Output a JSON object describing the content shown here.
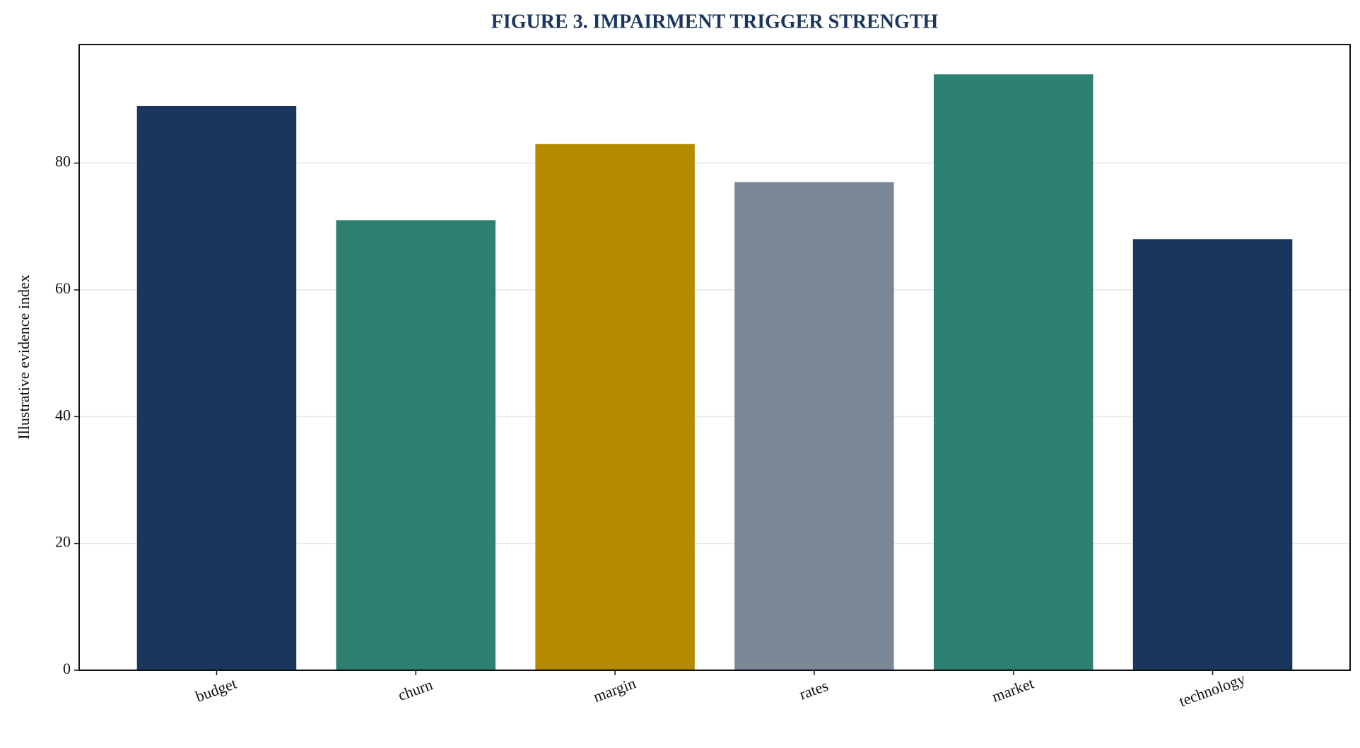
{
  "chart_data": {
    "type": "bar",
    "title": "FIGURE 3. IMPAIRMENT TRIGGER STRENGTH",
    "y_label": "Illustrative evidence index",
    "categories": [
      "budget",
      "churn",
      "margin",
      "rates",
      "market",
      "technology"
    ],
    "values": [
      89,
      71,
      83,
      77,
      94,
      68
    ],
    "colors": [
      "#1b365d",
      "#2e8070",
      "#b38a00",
      "#7a8796",
      "#2e8070",
      "#1b365d"
    ],
    "ylim": [
      0,
      98.7
    ],
    "yticks": [
      0,
      20,
      40,
      60,
      80
    ],
    "grid": true
  }
}
